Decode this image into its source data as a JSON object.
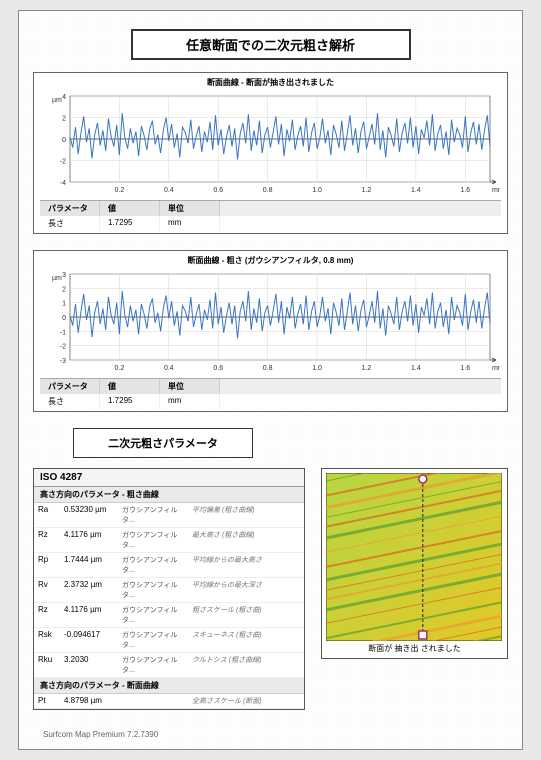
{
  "page_title": "任意断面での二次元粗さ解析",
  "chart1": {
    "title": "断面曲線 - 断面が抽き出されました",
    "type": "line",
    "y_label": "µm",
    "x_label": "mm",
    "ylim": [
      -4,
      4
    ],
    "xlim": [
      0,
      1.7
    ],
    "yticks": [
      -4,
      -2,
      0,
      2,
      4
    ],
    "xticks": [
      0.2,
      0.4,
      0.6,
      0.8,
      1.0,
      1.2,
      1.4,
      1.6
    ],
    "line_color": "#3a74c4",
    "grid_color": "#d7d7cc",
    "axis_color": "#333333",
    "background_color": "#ffffff",
    "fontsize": 7,
    "param_headers": [
      "パラメータ",
      "値",
      "単位"
    ],
    "param_label": "長さ",
    "param_value": "1.7295",
    "param_unit": "mm",
    "data_y": [
      0.2,
      -0.8,
      1.1,
      -1.4,
      0.6,
      2.1,
      -0.3,
      1.0,
      -1.8,
      0.4,
      1.5,
      -0.6,
      0.8,
      -1.1,
      1.9,
      0.2,
      -0.7,
      1.3,
      -1.5,
      2.4,
      0.1,
      -0.9,
      1.0,
      -0.4,
      0.7,
      -1.6,
      1.2,
      0.3,
      -1.0,
      0.9,
      1.7,
      -0.5,
      0.4,
      -1.3,
      0.8,
      2.0,
      -0.2,
      1.4,
      -0.8,
      0.5,
      -1.7,
      1.1,
      0.6,
      -0.4,
      1.8,
      -0.9,
      0.3,
      1.2,
      -1.2,
      0.7,
      -0.3,
      1.6,
      -1.0,
      2.2,
      -0.6,
      0.9,
      -1.4,
      0.2,
      1.3,
      -0.7,
      1.0,
      -1.9,
      0.5,
      1.5,
      -0.4,
      2.3,
      -1.1,
      0.8,
      -0.6,
      1.7,
      -1.3,
      0.4,
      1.1,
      -0.8,
      0.6,
      2.1,
      -0.5,
      1.4,
      -1.6,
      0.9,
      -0.2,
      1.8,
      -1.0,
      0.3,
      1.2,
      -0.7,
      2.0,
      -1.2,
      0.6,
      1.5,
      -0.9,
      0.1,
      1.9,
      -0.4,
      0.8,
      -1.5,
      1.3,
      0.4,
      -0.8,
      1.7,
      -1.1,
      0.5,
      2.2,
      -0.6,
      1.0,
      -1.3,
      0.7,
      1.6,
      -0.9,
      0.2,
      1.4,
      -0.5,
      2.4,
      -1.0,
      0.8,
      -1.7,
      1.1,
      0.3,
      -0.7,
      1.9,
      -1.2,
      0.6,
      1.5,
      -0.4,
      2.0,
      -0.8,
      1.2,
      -1.4,
      0.9,
      0.1,
      1.7,
      -0.6,
      2.3,
      -1.1,
      0.5,
      1.3,
      -0.9,
      0.7,
      -1.5,
      1.8,
      -0.3,
      1.0,
      0.4,
      -0.8,
      2.1,
      -1.2,
      0.6,
      1.6,
      -0.5,
      1.4,
      -1.0,
      0.8,
      2.2,
      -0.7
    ]
  },
  "chart2": {
    "title": "断面曲線 - 粗さ (ガウシアンフィルタ, 0.8 mm)",
    "type": "line",
    "y_label": "µm",
    "x_label": "mm",
    "ylim": [
      -3,
      3
    ],
    "xlim": [
      0,
      1.7
    ],
    "yticks": [
      -3,
      -2,
      -1,
      0,
      1,
      2,
      3
    ],
    "xticks": [
      0.2,
      0.4,
      0.6,
      0.8,
      1.0,
      1.2,
      1.4,
      1.6
    ],
    "line_color": "#3a74c4",
    "grid_color": "#d7d7cc",
    "axis_color": "#333333",
    "background_color": "#ffffff",
    "fontsize": 7,
    "param_headers": [
      "パラメータ",
      "値",
      "単位"
    ],
    "param_label": "長さ",
    "param_value": "1.7295",
    "param_unit": "mm",
    "data_y": [
      0.1,
      -0.6,
      0.9,
      -1.1,
      0.4,
      1.6,
      -0.2,
      0.8,
      -1.4,
      0.3,
      1.1,
      -0.5,
      0.6,
      -0.9,
      1.4,
      0.1,
      -0.5,
      1.0,
      -1.2,
      1.8,
      0.1,
      -0.7,
      0.8,
      -0.3,
      0.5,
      -1.2,
      0.9,
      0.2,
      -0.8,
      0.7,
      1.3,
      -0.4,
      0.3,
      -1.0,
      0.6,
      1.5,
      -0.1,
      1.1,
      -0.6,
      0.4,
      -1.3,
      0.8,
      0.4,
      -0.3,
      1.4,
      -0.7,
      0.2,
      0.9,
      -0.9,
      0.5,
      -0.2,
      1.2,
      -0.8,
      1.7,
      -0.5,
      0.7,
      -1.1,
      0.1,
      1.0,
      -0.5,
      0.8,
      -1.5,
      0.4,
      1.1,
      -0.3,
      1.8,
      -0.9,
      0.6,
      -0.4,
      1.3,
      -1.0,
      0.3,
      0.8,
      -0.6,
      0.4,
      1.6,
      -0.4,
      1.1,
      -1.2,
      0.7,
      -0.1,
      1.4,
      -0.8,
      0.2,
      0.9,
      -0.5,
      1.5,
      -0.9,
      0.4,
      1.1,
      -0.7,
      0.1,
      1.4,
      -0.3,
      0.6,
      -1.2,
      1.0,
      0.3,
      -0.6,
      1.3,
      -0.9,
      0.4,
      1.7,
      -0.5,
      0.8,
      -1.0,
      0.5,
      1.2,
      -0.7,
      0.1,
      1.1,
      -0.4,
      1.8,
      -0.8,
      0.6,
      -1.3,
      0.8,
      0.2,
      -0.5,
      1.4,
      -0.9,
      0.4,
      1.1,
      -0.3,
      1.5,
      -0.6,
      0.9,
      -1.1,
      0.7,
      0.1,
      1.3,
      -0.5,
      1.7,
      -0.8,
      0.4,
      1.0,
      -0.7,
      0.5,
      -1.2,
      1.4,
      -0.2,
      0.8,
      0.3,
      -0.6,
      1.6,
      -0.9,
      0.4,
      1.2,
      -0.4,
      1.1,
      -0.8,
      0.6,
      1.7,
      -0.5
    ]
  },
  "section2_title": "二次元粗さパラメータ",
  "iso_table": {
    "header": "ISO 4287",
    "sub1": "高さ方向のパラメータ - 粗さ曲線",
    "sub2": "高さ方向のパラメータ - 断面曲線",
    "rows1": [
      {
        "sym": "Ra",
        "val": "0.53230 µm",
        "filt": "ガウシアンフィルタ...",
        "desc": "平均偏差 (粗さ曲線)"
      },
      {
        "sym": "Rz",
        "val": "4.1176 µm",
        "filt": "ガウシアンフィルタ...",
        "desc": "最大高さ (粗さ曲線)"
      },
      {
        "sym": "Rp",
        "val": "1.7444 µm",
        "filt": "ガウシアンフィルタ...",
        "desc": "平均線からの最大高さ"
      },
      {
        "sym": "Rv",
        "val": "2.3732 µm",
        "filt": "ガウシアンフィルタ...",
        "desc": "平均線からの最大深さ"
      },
      {
        "sym": "Rz",
        "val": "4.1176 µm",
        "filt": "ガウシアンフィルタ...",
        "desc": "粗さスケール (粗さ曲)"
      },
      {
        "sym": "Rsk",
        "val": "-0.094617",
        "filt": "ガウシアンフィルタ...",
        "desc": "スキューネス (粗さ曲)"
      },
      {
        "sym": "Rku",
        "val": "3.2030",
        "filt": "ガウシアンフィルタ...",
        "desc": "クルトシス (粗さ曲線)"
      }
    ],
    "rows2": [
      {
        "sym": "Pt",
        "val": "4.8798 µm",
        "filt": "",
        "desc": "全高さスケール (断面)"
      }
    ]
  },
  "map": {
    "caption": "断面が 抽き出 されました",
    "colors": {
      "bg1": "#b8d642",
      "bg2": "#e2c828",
      "streak1": "#5fa030",
      "streak2": "#d96a1e",
      "streak3": "#e8a030"
    },
    "line_color": "#222222",
    "marker_color": "#a03060",
    "marker_fill": "#ffffff"
  },
  "footer": "Surfcom Map Premium 7.2.7390"
}
